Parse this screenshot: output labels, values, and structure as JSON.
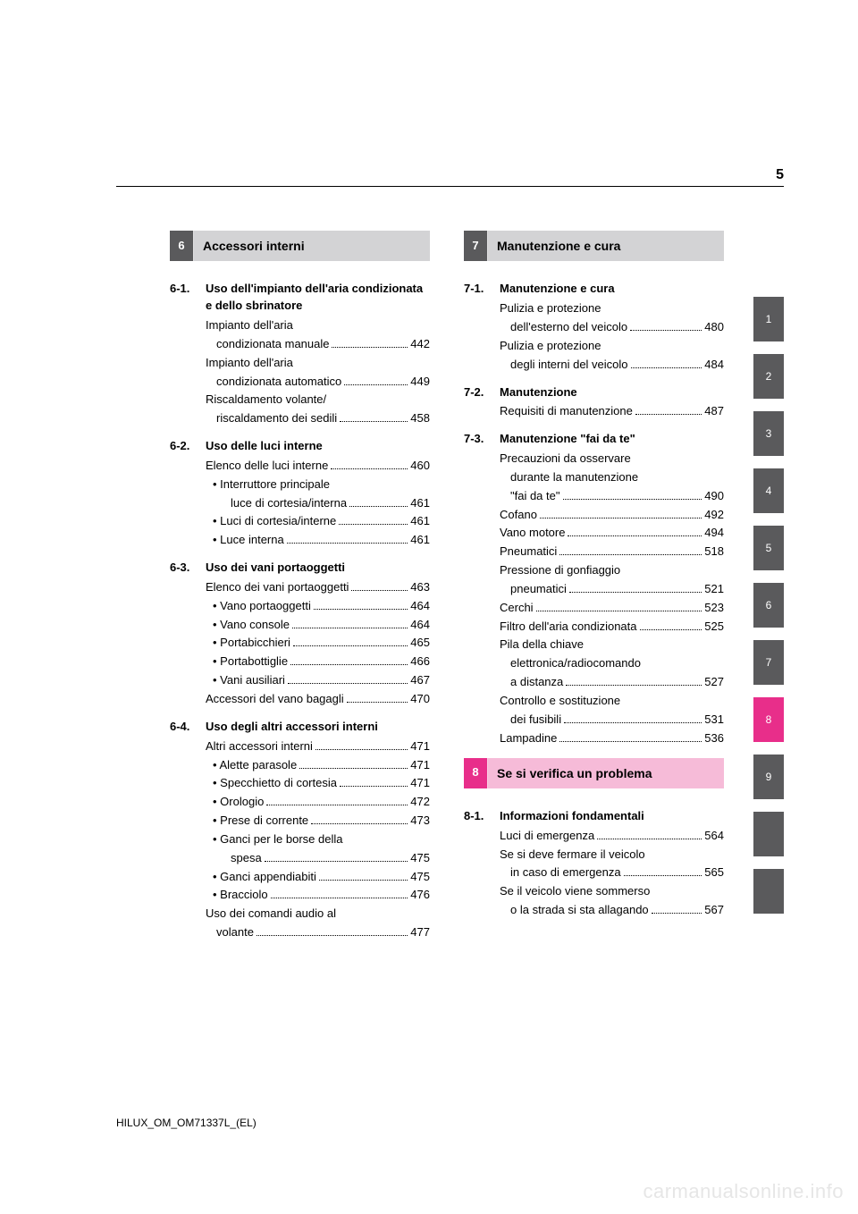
{
  "page_number": "5",
  "footer": "HILUX_OM_OM71337L_(EL)",
  "watermark": "carmanualsonline.info",
  "colors": {
    "gray_tab": "#5a5a5c",
    "gray_light": "#d3d3d5",
    "magenta": "#e82e8a",
    "magenta_light": "#f6bbd8"
  },
  "chapters": [
    {
      "num": "6",
      "title": "Accessori interni",
      "num_bg": "#5a5a5c",
      "title_bg": "#d3d3d5",
      "sections": [
        {
          "num": "6-1.",
          "title": "Uso dell'impianto dell'aria condizionata e dello sbrinatore",
          "entries": [
            {
              "label_lines": [
                "Impianto dell'aria",
                "condizionata manuale"
              ],
              "page": "442"
            },
            {
              "label_lines": [
                "Impianto dell'aria",
                "condizionata automatico"
              ],
              "page": "449"
            },
            {
              "label_lines": [
                "Riscaldamento volante/",
                "riscaldamento dei sedili"
              ],
              "page": "458"
            }
          ]
        },
        {
          "num": "6-2.",
          "title": "Uso delle luci interne",
          "entries": [
            {
              "label_lines": [
                "Elenco delle luci interne"
              ],
              "page": "460"
            },
            {
              "label_lines": [
                "Interruttore principale",
                "luce di cortesia/interna"
              ],
              "page": "461",
              "sub": true
            },
            {
              "label_lines": [
                "Luci di cortesia/interne"
              ],
              "page": "461",
              "sub": true
            },
            {
              "label_lines": [
                "Luce interna"
              ],
              "page": "461",
              "sub": true
            }
          ]
        },
        {
          "num": "6-3.",
          "title": "Uso dei vani portaoggetti",
          "entries": [
            {
              "label_lines": [
                "Elenco dei vani portaoggetti"
              ],
              "page": "463"
            },
            {
              "label_lines": [
                "Vano portaoggetti"
              ],
              "page": "464",
              "sub": true
            },
            {
              "label_lines": [
                "Vano console"
              ],
              "page": "464",
              "sub": true
            },
            {
              "label_lines": [
                "Portabicchieri"
              ],
              "page": "465",
              "sub": true
            },
            {
              "label_lines": [
                "Portabottiglie"
              ],
              "page": "466",
              "sub": true
            },
            {
              "label_lines": [
                "Vani ausiliari"
              ],
              "page": "467",
              "sub": true
            },
            {
              "label_lines": [
                "Accessori del vano bagagli"
              ],
              "page": "470"
            }
          ]
        },
        {
          "num": "6-4.",
          "title": "Uso degli altri accessori interni",
          "entries": [
            {
              "label_lines": [
                "Altri accessori interni"
              ],
              "page": "471"
            },
            {
              "label_lines": [
                "Alette parasole"
              ],
              "page": "471",
              "sub": true
            },
            {
              "label_lines": [
                "Specchietto di cortesia"
              ],
              "page": "471",
              "sub": true
            },
            {
              "label_lines": [
                "Orologio"
              ],
              "page": "472",
              "sub": true
            },
            {
              "label_lines": [
                "Prese di corrente"
              ],
              "page": "473",
              "sub": true
            },
            {
              "label_lines": [
                "Ganci per le borse della",
                "spesa"
              ],
              "page": "475",
              "sub": true
            },
            {
              "label_lines": [
                "Ganci appendiabiti"
              ],
              "page": "475",
              "sub": true
            },
            {
              "label_lines": [
                "Bracciolo"
              ],
              "page": "476",
              "sub": true
            },
            {
              "label_lines": [
                "Uso dei comandi audio al",
                "volante"
              ],
              "page": "477"
            }
          ]
        }
      ]
    },
    {
      "num": "7",
      "title": "Manutenzione e cura",
      "num_bg": "#5a5a5c",
      "title_bg": "#d3d3d5",
      "sections": [
        {
          "num": "7-1.",
          "title": "Manutenzione e cura",
          "entries": [
            {
              "label_lines": [
                "Pulizia e protezione",
                "dell'esterno del veicolo"
              ],
              "page": "480"
            },
            {
              "label_lines": [
                "Pulizia e protezione",
                "degli interni del veicolo"
              ],
              "page": "484"
            }
          ]
        },
        {
          "num": "7-2.",
          "title": "Manutenzione",
          "entries": [
            {
              "label_lines": [
                "Requisiti di manutenzione"
              ],
              "page": "487"
            }
          ]
        },
        {
          "num": "7-3.",
          "title": "Manutenzione \"fai da te\"",
          "entries": [
            {
              "label_lines": [
                "Precauzioni da osservare",
                "durante la manutenzione",
                "\"fai da te\""
              ],
              "page": "490"
            },
            {
              "label_lines": [
                "Cofano"
              ],
              "page": "492"
            },
            {
              "label_lines": [
                "Vano motore"
              ],
              "page": "494"
            },
            {
              "label_lines": [
                "Pneumatici"
              ],
              "page": "518"
            },
            {
              "label_lines": [
                "Pressione di gonfiaggio",
                "pneumatici"
              ],
              "page": "521"
            },
            {
              "label_lines": [
                "Cerchi"
              ],
              "page": "523"
            },
            {
              "label_lines": [
                "Filtro dell'aria condizionata"
              ],
              "page": "525"
            },
            {
              "label_lines": [
                "Pila della chiave",
                "elettronica/radiocomando",
                "a distanza"
              ],
              "page": "527"
            },
            {
              "label_lines": [
                "Controllo e sostituzione",
                "dei fusibili"
              ],
              "page": "531"
            },
            {
              "label_lines": [
                "Lampadine"
              ],
              "page": "536"
            }
          ]
        }
      ]
    },
    {
      "num": "8",
      "title": "Se si verifica un problema",
      "num_bg": "#e82e8a",
      "title_bg": "#f6bbd8",
      "sections": [
        {
          "num": "8-1.",
          "title": "Informazioni fondamentali",
          "entries": [
            {
              "label_lines": [
                "Luci di emergenza"
              ],
              "page": "564"
            },
            {
              "label_lines": [
                "Se si deve fermare il veicolo",
                "in caso di emergenza"
              ],
              "page": "565"
            },
            {
              "label_lines": [
                "Se il veicolo viene sommerso",
                "o la strada si sta allagando"
              ],
              "page": "567"
            }
          ]
        }
      ]
    }
  ],
  "tabs": [
    {
      "label": "1",
      "bg": "#5a5a5c"
    },
    {
      "label": "2",
      "bg": "#5a5a5c"
    },
    {
      "label": "3",
      "bg": "#5a5a5c"
    },
    {
      "label": "4",
      "bg": "#5a5a5c"
    },
    {
      "label": "5",
      "bg": "#5a5a5c"
    },
    {
      "label": "6",
      "bg": "#5a5a5c"
    },
    {
      "label": "7",
      "bg": "#5a5a5c"
    },
    {
      "label": "8",
      "bg": "#e82e8a"
    },
    {
      "label": "9",
      "bg": "#5a5a5c"
    },
    {
      "label": "",
      "bg": "#5a5a5c"
    },
    {
      "label": "",
      "bg": "#5a5a5c"
    }
  ]
}
